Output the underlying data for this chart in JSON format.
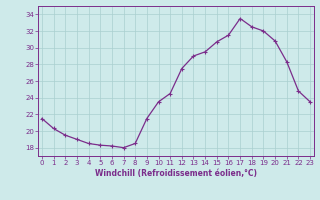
{
  "x": [
    0,
    1,
    2,
    3,
    4,
    5,
    6,
    7,
    8,
    9,
    10,
    11,
    12,
    13,
    14,
    15,
    16,
    17,
    18,
    19,
    20,
    21,
    22,
    23
  ],
  "y": [
    21.5,
    20.3,
    19.5,
    19.0,
    18.5,
    18.3,
    18.2,
    18.0,
    18.5,
    21.5,
    23.5,
    24.5,
    27.5,
    29.0,
    29.5,
    30.7,
    31.5,
    33.5,
    32.5,
    32.0,
    30.8,
    28.3,
    24.8,
    23.5
  ],
  "line_color": "#7b2d8b",
  "marker": "+",
  "marker_size": 3,
  "marker_linewidth": 0.8,
  "linewidth": 0.9,
  "bg_color": "#ceeaea",
  "grid_color": "#aacfcf",
  "xlabel": "Windchill (Refroidissement éolien,°C)",
  "ylabel": "",
  "ylim": [
    17,
    35
  ],
  "yticks": [
    18,
    20,
    22,
    24,
    26,
    28,
    30,
    32,
    34
  ],
  "xticks": [
    0,
    1,
    2,
    3,
    4,
    5,
    6,
    7,
    8,
    9,
    10,
    11,
    12,
    13,
    14,
    15,
    16,
    17,
    18,
    19,
    20,
    21,
    22,
    23
  ],
  "xlim": [
    -0.3,
    23.3
  ],
  "axis_color": "#7b2d8b",
  "tick_color": "#7b2d8b",
  "label_color": "#7b2d8b",
  "tick_fontsize": 5.0,
  "xlabel_fontsize": 5.5
}
